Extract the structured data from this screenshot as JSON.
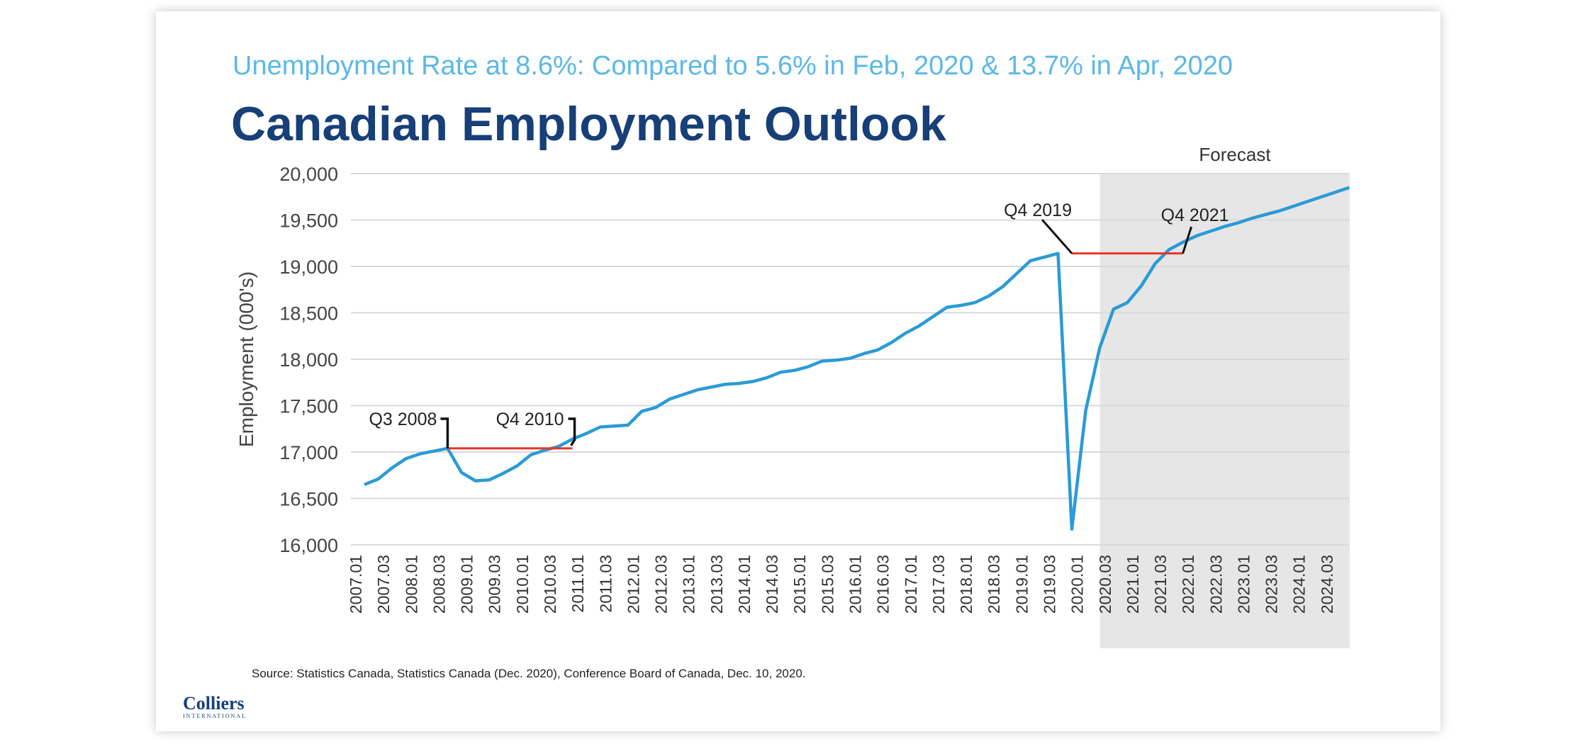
{
  "subtitle": "Unemployment Rate at 8.6%: Compared to 5.6% in Feb, 2020 & 13.7% in Apr, 2020",
  "title": "Canadian Employment Outlook",
  "source": "Source: Statistics Canada, Statistics Canada (Dec. 2020), Conference Board of Canada, Dec. 10, 2020.",
  "logo": {
    "name": "Colliers",
    "tagline": "INTERNATIONAL"
  },
  "colors": {
    "line": "#2a9bd6",
    "annotation": "#e8352b",
    "forecast_shade": "#e6e6e6",
    "title": "#173f78",
    "subtitle": "#5bb8e8"
  },
  "chart_data": {
    "type": "line",
    "ylabel": "Employment (000's)",
    "ylim": [
      16000,
      20000
    ],
    "yticks": [
      16000,
      16500,
      17000,
      17500,
      18000,
      18500,
      19000,
      19500,
      20000
    ],
    "ytick_labels": [
      "16,000",
      "16,500",
      "17,000",
      "17,500",
      "18,000",
      "18,500",
      "19,000",
      "19,500",
      "20,000"
    ],
    "xtick_labels": [
      "2007.01",
      "2007.03",
      "2008.01",
      "2008.03",
      "2009.01",
      "2009.03",
      "2010.01",
      "2010.03",
      "2011.01",
      "2011.03",
      "2012.01",
      "2012.03",
      "2013.01",
      "2013.03",
      "2014.01",
      "2014.03",
      "2015.01",
      "2015.03",
      "2016.01",
      "2016.03",
      "2017.01",
      "2017.03",
      "2018.01",
      "2018.03",
      "2019.01",
      "2019.03",
      "2020.01",
      "2020.03",
      "2021.01",
      "2021.03",
      "2022.01",
      "2022.03",
      "2023.01",
      "2023.03",
      "2024.01",
      "2024.03"
    ],
    "forecast_label": "Forecast",
    "forecast_start": "2020.03",
    "grid": true,
    "legend": "none",
    "series": [
      {
        "x": [
          "2007.01",
          "2007.02",
          "2007.03",
          "2007.04",
          "2008.01",
          "2008.02",
          "2008.03",
          "2008.04",
          "2009.01",
          "2009.02",
          "2009.03",
          "2009.04",
          "2010.01",
          "2010.02",
          "2010.03",
          "2010.04",
          "2011.01",
          "2011.02",
          "2011.03",
          "2011.04",
          "2012.01",
          "2012.02",
          "2012.03",
          "2012.04",
          "2013.01",
          "2013.02",
          "2013.03",
          "2013.04",
          "2014.01",
          "2014.02",
          "2014.03",
          "2014.04",
          "2015.01",
          "2015.02",
          "2015.03",
          "2015.04",
          "2016.01",
          "2016.02",
          "2016.03",
          "2016.04",
          "2017.01",
          "2017.02",
          "2017.03",
          "2017.04",
          "2018.01",
          "2018.02",
          "2018.03",
          "2018.04",
          "2019.01",
          "2019.02",
          "2019.03",
          "2019.04",
          "2020.01",
          "2020.02",
          "2020.03",
          "2020.04",
          "2021.01",
          "2021.02",
          "2021.03",
          "2021.04",
          "2022.01",
          "2022.02",
          "2022.03",
          "2022.04",
          "2023.01",
          "2023.02",
          "2023.03",
          "2023.04",
          "2024.01",
          "2024.02",
          "2024.03",
          "2024.04"
        ],
        "values": [
          16650,
          16710,
          16830,
          16930,
          16980,
          17010,
          17040,
          16780,
          16690,
          16700,
          16770,
          16850,
          16970,
          17020,
          17060,
          17140,
          17200,
          17270,
          17280,
          17290,
          17440,
          17480,
          17570,
          17620,
          17670,
          17700,
          17730,
          17740,
          17760,
          17800,
          17860,
          17880,
          17920,
          17980,
          17990,
          18010,
          18060,
          18100,
          18180,
          18280,
          18360,
          18460,
          18560,
          18580,
          18610,
          18680,
          18780,
          18920,
          19060,
          19100,
          19140,
          16170,
          17450,
          18120,
          18540,
          18610,
          18790,
          19030,
          19180,
          19260,
          19330,
          19380,
          19430,
          19470,
          19520,
          19560,
          19600,
          19650,
          19700,
          19750,
          19800,
          19850
        ]
      }
    ],
    "annotations": [
      {
        "label": "Q3 2008",
        "at": "2008.03",
        "level": 17040
      },
      {
        "label": "Q4 2010",
        "at": "2010.04",
        "level": 17040
      },
      {
        "label": "Q4 2019",
        "at": "2019.04",
        "level": 19140
      },
      {
        "label": "Q4 2021",
        "at": "2021.04",
        "level": 19140
      }
    ]
  }
}
